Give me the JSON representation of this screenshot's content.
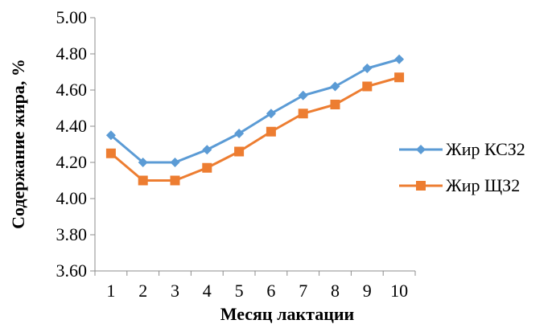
{
  "chart_data": {
    "type": "line",
    "title": "",
    "xlabel": "Месяц лактации",
    "ylabel": "Содержание жира, %",
    "categories": [
      "1",
      "2",
      "3",
      "4",
      "5",
      "6",
      "7",
      "8",
      "9",
      "10"
    ],
    "ylim": [
      3.6,
      5.0
    ],
    "yticks": [
      "3.60",
      "3.80",
      "4.00",
      "4.20",
      "4.40",
      "4.60",
      "4.80",
      "5.00"
    ],
    "grid": false,
    "legend_position": "right",
    "series": [
      {
        "name": "Жир КСЗ2",
        "color": "#5B9BD5",
        "marker": "diamond",
        "values": [
          4.35,
          4.2,
          4.2,
          4.27,
          4.36,
          4.47,
          4.57,
          4.62,
          4.72,
          4.77
        ]
      },
      {
        "name": "Жир ЩЗ2",
        "color": "#ED7D31",
        "marker": "square",
        "values": [
          4.25,
          4.1,
          4.1,
          4.17,
          4.26,
          4.37,
          4.47,
          4.52,
          4.62,
          4.67
        ]
      }
    ]
  }
}
